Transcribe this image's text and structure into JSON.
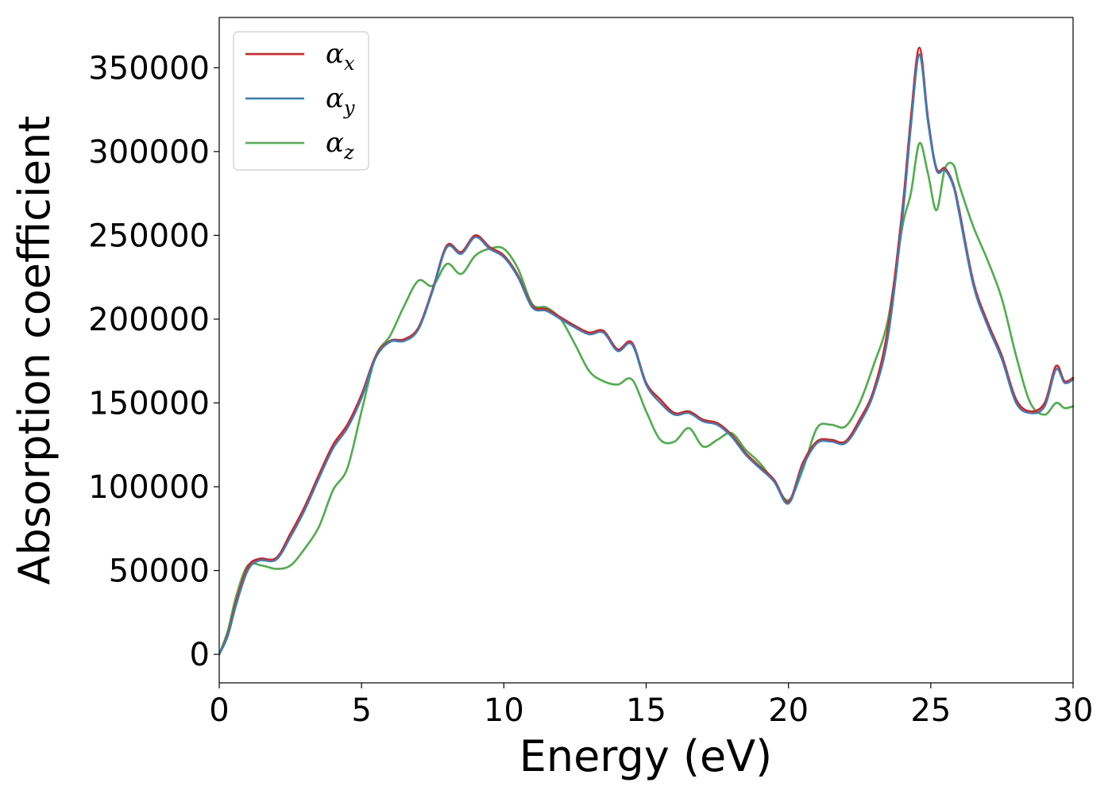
{
  "chart_data": {
    "type": "line",
    "title": "",
    "xlabel": "Energy (eV)",
    "ylabel": "Absorption coefficient",
    "xlim": [
      0,
      30
    ],
    "ylim": [
      -17000,
      380000
    ],
    "xticks": [
      0,
      5,
      10,
      15,
      20,
      25,
      30
    ],
    "xtick_labels": [
      "0",
      "5",
      "10",
      "15",
      "20",
      "25",
      "30"
    ],
    "yticks": [
      0,
      50000,
      100000,
      150000,
      200000,
      250000,
      300000,
      350000
    ],
    "ytick_labels": [
      "0",
      "50000",
      "100000",
      "150000",
      "200000",
      "250000",
      "300000",
      "350000"
    ],
    "grid": false,
    "legend_position": "top-left",
    "series": [
      {
        "name": "αx",
        "symbol": "α",
        "subscript": "x",
        "color": "#e41a1c",
        "x": [
          0,
          0.3,
          0.6,
          1.0,
          1.4,
          2.0,
          2.5,
          3.0,
          3.5,
          4.0,
          4.5,
          5.0,
          5.5,
          6.0,
          6.5,
          7.0,
          7.5,
          8.0,
          8.5,
          9.0,
          9.5,
          10.0,
          10.5,
          11.0,
          11.5,
          12.0,
          12.5,
          13.0,
          13.5,
          14.0,
          14.5,
          15.0,
          15.5,
          16.0,
          16.5,
          17.0,
          17.5,
          18.0,
          18.5,
          19.0,
          19.5,
          20.0,
          20.5,
          21.0,
          21.5,
          22.0,
          22.5,
          23.0,
          23.5,
          24.0,
          24.3,
          24.6,
          24.9,
          25.2,
          25.5,
          25.8,
          26.0,
          26.5,
          27.0,
          27.5,
          28.0,
          28.5,
          29.0,
          29.4,
          29.7,
          30.0
        ],
        "y": [
          0,
          12000,
          32000,
          52000,
          57000,
          57500,
          72000,
          88000,
          107000,
          125000,
          137000,
          155000,
          178000,
          187000,
          188000,
          195000,
          218000,
          244000,
          240000,
          250000,
          243000,
          238000,
          226000,
          208000,
          206000,
          201000,
          196000,
          192000,
          193000,
          182000,
          186000,
          162000,
          152000,
          144000,
          145000,
          140000,
          138000,
          131000,
          120000,
          112000,
          104000,
          91000,
          114000,
          127000,
          128000,
          127000,
          140000,
          158000,
          195000,
          265000,
          320000,
          362000,
          320000,
          290000,
          290000,
          280000,
          265000,
          222000,
          198000,
          178000,
          152000,
          145000,
          150000,
          172000,
          163000,
          165000
        ]
      },
      {
        "name": "αy",
        "symbol": "α",
        "subscript": "y",
        "color": "#377eb8",
        "x": [
          0,
          0.3,
          0.6,
          1.0,
          1.4,
          2.0,
          2.5,
          3.0,
          3.5,
          4.0,
          4.5,
          5.0,
          5.5,
          6.0,
          6.5,
          7.0,
          7.5,
          8.0,
          8.5,
          9.0,
          9.5,
          10.0,
          10.5,
          11.0,
          11.5,
          12.0,
          12.5,
          13.0,
          13.5,
          14.0,
          14.5,
          15.0,
          15.5,
          16.0,
          16.5,
          17.0,
          17.5,
          18.0,
          18.5,
          19.0,
          19.5,
          20.0,
          20.5,
          21.0,
          21.5,
          22.0,
          22.5,
          23.0,
          23.5,
          24.0,
          24.3,
          24.6,
          24.9,
          25.2,
          25.5,
          25.8,
          26.0,
          26.5,
          27.0,
          27.5,
          28.0,
          28.5,
          29.0,
          29.4,
          29.7,
          30.0
        ],
        "y": [
          0,
          11000,
          30000,
          50000,
          56000,
          56500,
          70000,
          86000,
          105000,
          123000,
          135000,
          153000,
          177000,
          186500,
          187000,
          194000,
          217000,
          243000,
          239000,
          249000,
          242000,
          237000,
          225000,
          207000,
          205000,
          200000,
          195000,
          191000,
          192000,
          181000,
          185000,
          161000,
          150000,
          143000,
          144000,
          139000,
          137000,
          130000,
          119000,
          111000,
          103000,
          90000,
          112000,
          126000,
          127000,
          126000,
          138000,
          156000,
          190000,
          260000,
          315000,
          358000,
          318000,
          289000,
          289000,
          279000,
          263000,
          220000,
          196000,
          176000,
          150000,
          144000,
          148000,
          170000,
          162000,
          164000
        ]
      },
      {
        "name": "αz",
        "symbol": "α",
        "subscript": "z",
        "color": "#4daf4a",
        "x": [
          0,
          0.3,
          0.6,
          1.0,
          1.5,
          2.0,
          2.5,
          3.0,
          3.5,
          4.0,
          4.5,
          5.0,
          5.5,
          6.0,
          6.5,
          7.0,
          7.5,
          8.0,
          8.5,
          9.0,
          9.5,
          10.0,
          10.5,
          11.0,
          11.5,
          12.0,
          12.5,
          13.0,
          13.5,
          14.0,
          14.5,
          15.0,
          15.5,
          16.0,
          16.5,
          17.0,
          17.5,
          18.0,
          18.5,
          19.0,
          19.5,
          20.0,
          20.5,
          21.0,
          21.5,
          22.0,
          22.5,
          23.0,
          23.5,
          24.0,
          24.3,
          24.6,
          24.9,
          25.2,
          25.5,
          25.8,
          26.0,
          26.5,
          27.0,
          27.5,
          28.0,
          28.5,
          29.0,
          29.4,
          29.7,
          30.0
        ],
        "y": [
          0,
          14000,
          35000,
          53000,
          53000,
          51000,
          53000,
          63000,
          76000,
          98000,
          111000,
          145000,
          178000,
          190000,
          208000,
          223000,
          220000,
          233000,
          227000,
          238000,
          242000,
          242000,
          230000,
          209000,
          207000,
          200000,
          185000,
          169000,
          163000,
          161000,
          164000,
          145000,
          128000,
          127000,
          135000,
          124000,
          128000,
          132000,
          122000,
          114000,
          103000,
          92000,
          110000,
          135000,
          137000,
          136000,
          150000,
          173000,
          200000,
          255000,
          275000,
          305000,
          287000,
          265000,
          290000,
          292000,
          280000,
          255000,
          235000,
          212000,
          178000,
          150000,
          143000,
          150000,
          147000,
          148000
        ]
      }
    ]
  }
}
